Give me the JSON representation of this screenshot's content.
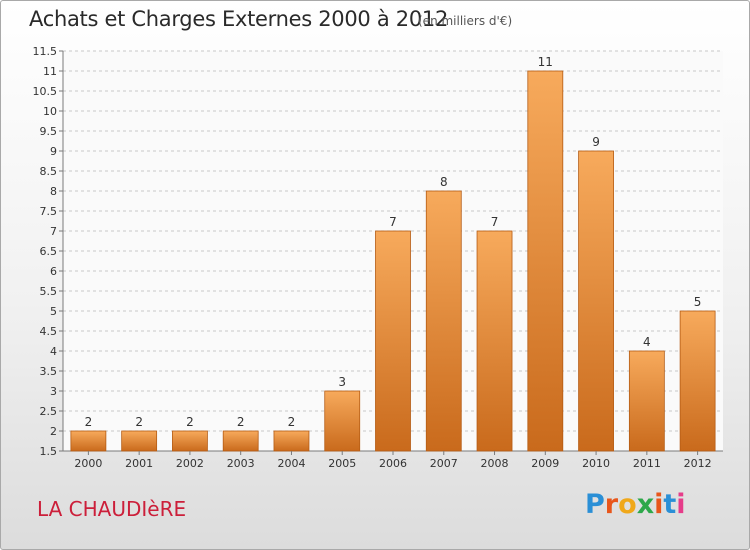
{
  "header": {
    "title": "Achats et Charges Externes 2000 à 2012",
    "subtitle": "(en milliers d'€)"
  },
  "footer": {
    "commune": "LA CHAUDIèRE",
    "logo_text": "Proxiti",
    "logo_colors": [
      "#2a8fd6",
      "#e8561b",
      "#f0a81a",
      "#2da84a",
      "#e8561b",
      "#2a8fd6",
      "#e63c8a"
    ]
  },
  "colors": {
    "bar_top": "#f7aa5c",
    "bar_bottom": "#c96a1c",
    "bar_edge": "#b55c14",
    "grid": "#c8c8c8",
    "axis": "#7a7a7a",
    "text": "#333333",
    "commune": "#cc1f3a"
  },
  "chart_data": {
    "type": "bar",
    "categories": [
      "2000",
      "2001",
      "2002",
      "2003",
      "2004",
      "2005",
      "2006",
      "2007",
      "2008",
      "2009",
      "2010",
      "2011",
      "2012"
    ],
    "values": [
      2,
      2,
      2,
      2,
      2,
      3,
      7,
      8,
      7,
      11,
      9,
      4,
      5
    ],
    "value_labels": [
      "2",
      "2",
      "2",
      "2",
      "2",
      "3",
      "7",
      "8",
      "7",
      "11",
      "9",
      "4",
      "5"
    ],
    "y_ticks": [
      "1.5",
      "2",
      "2.5",
      "3",
      "3.5",
      "4",
      "4.5",
      "5",
      "5.5",
      "6",
      "6.5",
      "7",
      "7.5",
      "8",
      "8.5",
      "9",
      "9.5",
      "10",
      "10.5",
      "11",
      "11.5"
    ],
    "ylim": [
      1.5,
      11.5
    ],
    "grid": true,
    "grid_style": "dashed-horizontal"
  }
}
